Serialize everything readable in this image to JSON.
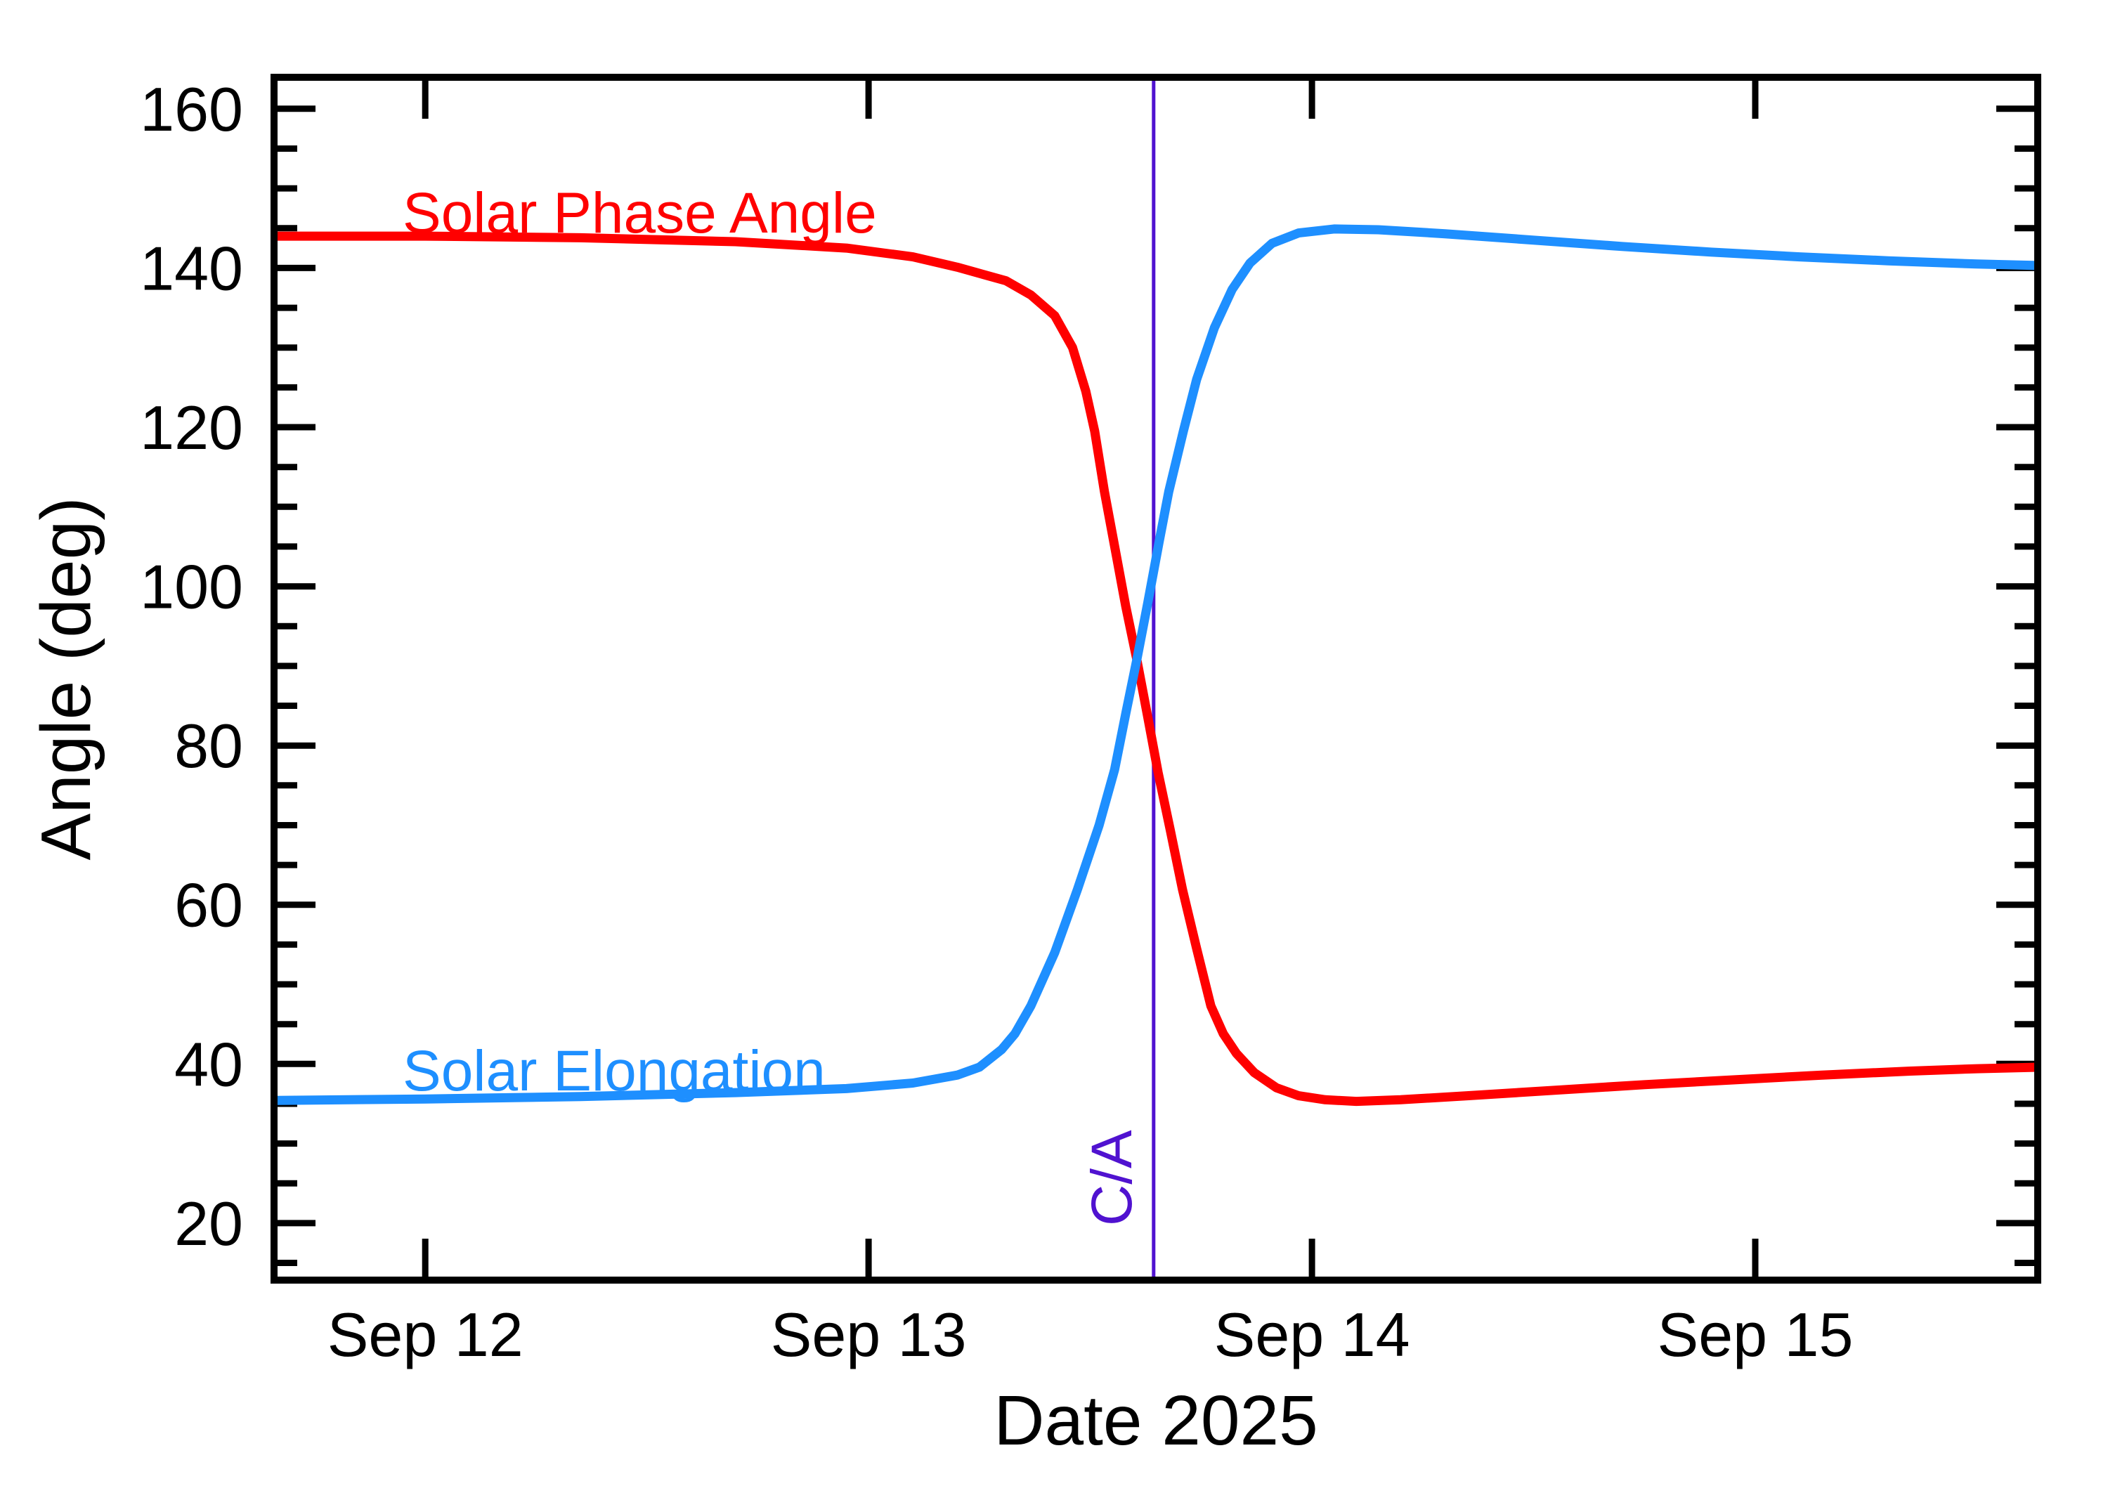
{
  "figure": {
    "background_color": "#ffffff",
    "axis_color": "#000000"
  },
  "chart_data": {
    "type": "line",
    "title": "",
    "xlabel": "Date 2025",
    "ylabel": "Angle (deg)",
    "grid": false,
    "legend_position": "inline-curve-labels",
    "x_axis": {
      "label": "Date 2025",
      "units": "date",
      "range_days": [
        11.651,
        15.645
      ],
      "ticks": [
        {
          "day": 12,
          "label": "Sep 12"
        },
        {
          "day": 13,
          "label": "Sep 13"
        },
        {
          "day": 14,
          "label": "Sep 14"
        },
        {
          "day": 15,
          "label": "Sep 15"
        }
      ]
    },
    "y_axis": {
      "label": "Angle (deg)",
      "units": "deg",
      "range": [
        12.4,
        164.4
      ],
      "major_ticks": [
        20,
        40,
        60,
        80,
        100,
        120,
        140,
        160
      ],
      "minor_tick_step": 5
    },
    "ca_marker": {
      "day": 13.643,
      "label": "C/A",
      "color": "#5012d0"
    },
    "series": [
      {
        "name": "Solar Phase Angle",
        "color": "#ff0000",
        "points": [
          [
            11.651,
            144.0
          ],
          [
            12.0,
            144.0
          ],
          [
            12.35,
            143.8
          ],
          [
            12.7,
            143.3
          ],
          [
            12.95,
            142.5
          ],
          [
            13.1,
            141.4
          ],
          [
            13.2,
            140.1
          ],
          [
            13.31,
            138.4
          ],
          [
            13.366,
            136.6
          ],
          [
            13.42,
            134.0
          ],
          [
            13.46,
            130.0
          ],
          [
            13.49,
            124.5
          ],
          [
            13.51,
            119.5
          ],
          [
            13.532,
            111.9
          ],
          [
            13.56,
            103.5
          ],
          [
            13.58,
            97.5
          ],
          [
            13.605,
            90.8
          ],
          [
            13.63,
            83.5
          ],
          [
            13.653,
            76.6
          ],
          [
            13.68,
            69.5
          ],
          [
            13.708,
            61.9
          ],
          [
            13.74,
            54.5
          ],
          [
            13.772,
            47.3
          ],
          [
            13.8,
            43.8
          ],
          [
            13.83,
            41.3
          ],
          [
            13.87,
            38.9
          ],
          [
            13.92,
            37.0
          ],
          [
            13.97,
            36.0
          ],
          [
            14.03,
            35.5
          ],
          [
            14.1,
            35.3
          ],
          [
            14.2,
            35.5
          ],
          [
            14.35,
            36.0
          ],
          [
            14.55,
            36.7
          ],
          [
            14.75,
            37.4
          ],
          [
            14.95,
            38.0
          ],
          [
            15.15,
            38.6
          ],
          [
            15.35,
            39.1
          ],
          [
            15.5,
            39.4
          ],
          [
            15.645,
            39.6
          ]
        ]
      },
      {
        "name": "Solar Elongation",
        "color": "#1e8fff",
        "points": [
          [
            11.651,
            35.4
          ],
          [
            12.0,
            35.6
          ],
          [
            12.35,
            35.9
          ],
          [
            12.7,
            36.4
          ],
          [
            12.95,
            36.9
          ],
          [
            13.1,
            37.6
          ],
          [
            13.2,
            38.6
          ],
          [
            13.25,
            39.6
          ],
          [
            13.3,
            41.8
          ],
          [
            13.33,
            43.8
          ],
          [
            13.366,
            47.3
          ],
          [
            13.42,
            54.0
          ],
          [
            13.471,
            61.9
          ],
          [
            13.52,
            70.0
          ],
          [
            13.555,
            77.0
          ],
          [
            13.58,
            84.0
          ],
          [
            13.605,
            90.8
          ],
          [
            13.63,
            98.0
          ],
          [
            13.655,
            105.5
          ],
          [
            13.677,
            111.9
          ],
          [
            13.71,
            119.5
          ],
          [
            13.74,
            126.0
          ],
          [
            13.78,
            132.5
          ],
          [
            13.82,
            137.3
          ],
          [
            13.86,
            140.6
          ],
          [
            13.91,
            143.1
          ],
          [
            13.97,
            144.4
          ],
          [
            14.05,
            144.9
          ],
          [
            14.15,
            144.8
          ],
          [
            14.3,
            144.3
          ],
          [
            14.5,
            143.5
          ],
          [
            14.7,
            142.7
          ],
          [
            14.9,
            142.0
          ],
          [
            15.1,
            141.4
          ],
          [
            15.3,
            140.9
          ],
          [
            15.5,
            140.5
          ],
          [
            15.645,
            140.3
          ]
        ]
      }
    ]
  }
}
